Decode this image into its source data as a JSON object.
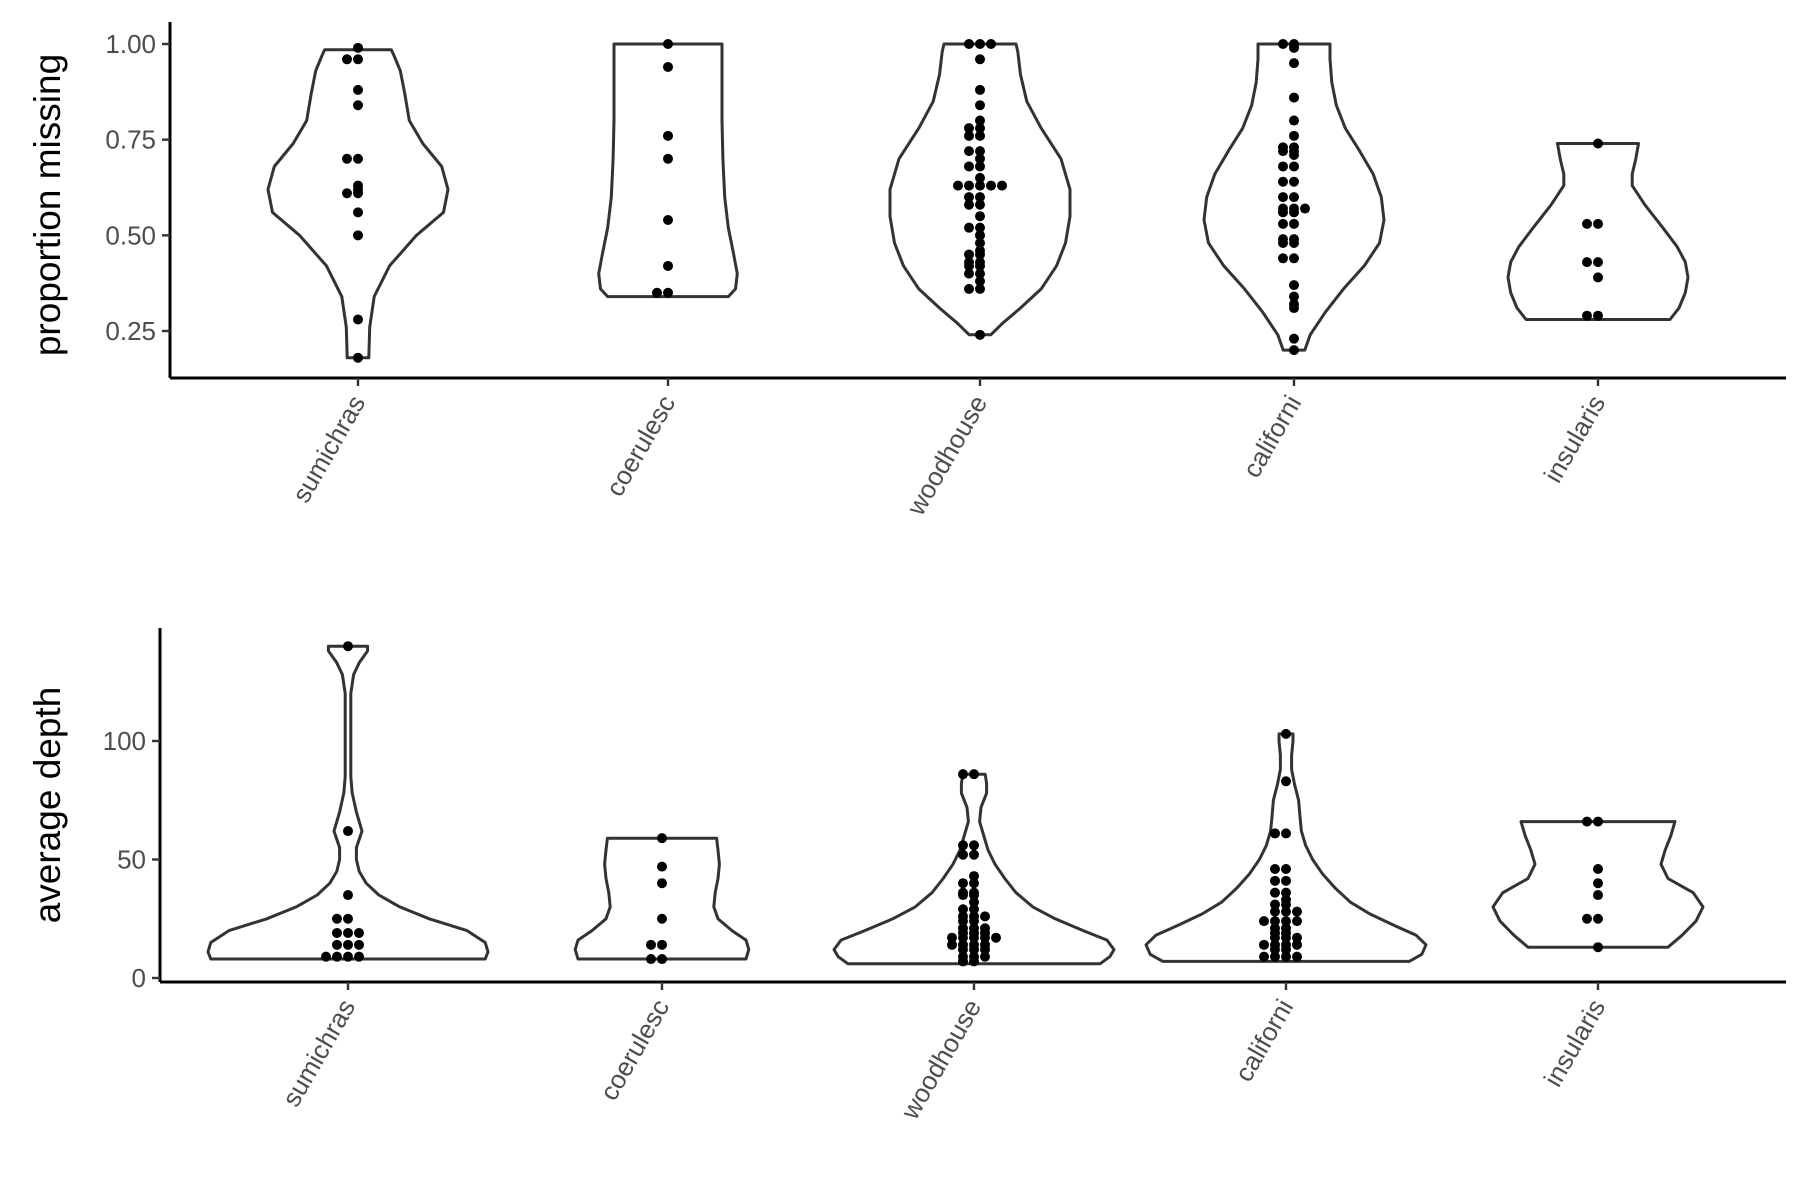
{
  "chart_data": [
    {
      "type": "violin",
      "ylabel": "proportion missing",
      "xlabel": "",
      "categories": [
        "sumichras",
        "coerulesc",
        "woodhouse",
        "californi",
        "insularis"
      ],
      "yticks": [
        0.25,
        0.5,
        0.75,
        1.0
      ],
      "ytick_labels": [
        "0.25",
        "0.50",
        "0.75",
        "1.00"
      ],
      "ylim": [
        0.13,
        1.05
      ],
      "series": [
        {
          "category": "sumichras",
          "values": [
            0.99,
            0.96,
            0.96,
            0.88,
            0.84,
            0.7,
            0.7,
            0.63,
            0.62,
            0.61,
            0.61,
            0.56,
            0.5,
            0.28,
            0.18
          ],
          "violin": {
            "y": [
              0.18,
              0.26,
              0.34,
              0.42,
              0.5,
              0.56,
              0.62,
              0.68,
              0.74,
              0.8,
              0.87,
              0.93,
              0.97,
              0.985
            ],
            "w": [
              0.12,
              0.13,
              0.18,
              0.35,
              0.65,
              0.95,
              1.0,
              0.93,
              0.72,
              0.57,
              0.52,
              0.47,
              0.4,
              0.37
            ]
          }
        },
        {
          "category": "coerulesc",
          "values": [
            1.0,
            0.94,
            0.76,
            0.7,
            0.54,
            0.42,
            0.35,
            0.35
          ],
          "violin": {
            "y": [
              0.34,
              0.36,
              0.4,
              0.45,
              0.52,
              0.6,
              0.7,
              0.8,
              0.9,
              0.97,
              1.0
            ],
            "w": [
              0.67,
              0.75,
              0.77,
              0.73,
              0.67,
              0.63,
              0.61,
              0.6,
              0.6,
              0.6,
              0.6
            ]
          }
        },
        {
          "category": "woodhouse",
          "values": [
            1.0,
            1.0,
            1.0,
            0.96,
            0.88,
            0.84,
            0.8,
            0.78,
            0.78,
            0.76,
            0.76,
            0.72,
            0.72,
            0.7,
            0.68,
            0.68,
            0.65,
            0.63,
            0.63,
            0.63,
            0.63,
            0.63,
            0.6,
            0.6,
            0.58,
            0.58,
            0.55,
            0.52,
            0.52,
            0.5,
            0.48,
            0.46,
            0.45,
            0.45,
            0.43,
            0.43,
            0.42,
            0.42,
            0.4,
            0.4,
            0.38,
            0.36,
            0.36,
            0.24
          ],
          "violin": {
            "y": [
              0.24,
              0.27,
              0.31,
              0.36,
              0.42,
              0.48,
              0.55,
              0.62,
              0.7,
              0.78,
              0.85,
              0.92,
              0.98,
              1.0
            ],
            "w": [
              0.12,
              0.25,
              0.45,
              0.68,
              0.85,
              0.95,
              1.0,
              1.0,
              0.9,
              0.68,
              0.52,
              0.45,
              0.42,
              0.4
            ]
          }
        },
        {
          "category": "californi",
          "values": [
            1.0,
            1.0,
            0.99,
            0.95,
            0.86,
            0.8,
            0.76,
            0.73,
            0.73,
            0.72,
            0.72,
            0.71,
            0.68,
            0.68,
            0.64,
            0.64,
            0.6,
            0.6,
            0.57,
            0.57,
            0.57,
            0.56,
            0.56,
            0.53,
            0.53,
            0.49,
            0.49,
            0.48,
            0.48,
            0.44,
            0.44,
            0.37,
            0.34,
            0.32,
            0.31,
            0.23,
            0.2
          ],
          "violin": {
            "y": [
              0.2,
              0.24,
              0.3,
              0.36,
              0.42,
              0.48,
              0.54,
              0.6,
              0.66,
              0.72,
              0.78,
              0.84,
              0.9,
              0.96,
              1.0
            ],
            "w": [
              0.12,
              0.18,
              0.35,
              0.55,
              0.78,
              0.95,
              1.0,
              0.97,
              0.88,
              0.73,
              0.57,
              0.47,
              0.42,
              0.4,
              0.4
            ]
          }
        },
        {
          "category": "insularis",
          "values": [
            0.74,
            0.53,
            0.53,
            0.43,
            0.43,
            0.39,
            0.29,
            0.29
          ],
          "violin": {
            "y": [
              0.28,
              0.31,
              0.35,
              0.39,
              0.43,
              0.47,
              0.52,
              0.58,
              0.63,
              0.66,
              0.7,
              0.74
            ],
            "w": [
              0.8,
              0.9,
              0.97,
              1.0,
              0.97,
              0.88,
              0.72,
              0.52,
              0.38,
              0.38,
              0.42,
              0.45
            ]
          }
        }
      ]
    },
    {
      "type": "violin",
      "ylabel": "average depth",
      "xlabel": "",
      "categories": [
        "sumichras",
        "coerulesc",
        "woodhouse",
        "californi",
        "insularis"
      ],
      "yticks": [
        0,
        50,
        100
      ],
      "ytick_labels": [
        "0",
        "50",
        "100"
      ],
      "ylim": [
        -1,
        150
      ],
      "series": [
        {
          "category": "sumichras",
          "values": [
            140,
            62,
            35,
            25,
            25,
            19,
            19,
            19,
            14,
            14,
            14,
            9,
            9,
            9,
            9
          ],
          "violin": {
            "y": [
              8,
              11,
              15,
              20,
              25,
              30,
              35,
              40,
              45,
              50,
              55,
              62,
              70,
              78,
              85,
              100,
              120,
              128,
              133,
              138,
              140
            ],
            "w": [
              0.98,
              1.0,
              0.98,
              0.85,
              0.58,
              0.37,
              0.22,
              0.13,
              0.08,
              0.06,
              0.06,
              0.1,
              0.06,
              0.03,
              0.02,
              0.02,
              0.02,
              0.04,
              0.08,
              0.14,
              0.14
            ]
          }
        },
        {
          "category": "coerulesc",
          "values": [
            59,
            47,
            40,
            25,
            14,
            14,
            8,
            8
          ],
          "violin": {
            "y": [
              8,
              12,
              16,
              20,
              25,
              30,
              36,
              42,
              48,
              54,
              59
            ],
            "w": [
              0.6,
              0.62,
              0.6,
              0.5,
              0.4,
              0.37,
              0.38,
              0.4,
              0.41,
              0.4,
              0.39
            ]
          }
        },
        {
          "category": "woodhouse",
          "values": [
            86,
            86,
            56,
            56,
            52,
            52,
            43,
            40,
            40,
            36,
            36,
            35,
            35,
            32,
            29,
            29,
            26,
            26,
            26,
            24,
            24,
            21,
            21,
            21,
            19,
            19,
            19,
            17,
            17,
            17,
            17,
            17,
            14,
            14,
            14,
            14,
            12,
            12,
            12,
            9,
            9,
            9,
            7,
            7
          ],
          "violin": {
            "y": [
              6,
              9,
              12,
              16,
              20,
              25,
              30,
              36,
              42,
              48,
              54,
              60,
              66,
              72,
              78,
              82,
              86
            ],
            "w": [
              0.9,
              0.97,
              1.0,
              0.95,
              0.78,
              0.58,
              0.42,
              0.3,
              0.22,
              0.15,
              0.1,
              0.07,
              0.04,
              0.05,
              0.09,
              0.09,
              0.08
            ]
          }
        },
        {
          "category": "californi",
          "values": [
            103,
            83,
            61,
            61,
            46,
            46,
            41,
            41,
            36,
            36,
            33,
            31,
            31,
            28,
            28,
            28,
            24,
            24,
            24,
            24,
            21,
            21,
            19,
            19,
            17,
            17,
            17,
            14,
            14,
            14,
            14,
            12,
            12,
            9,
            9,
            9,
            9
          ],
          "violin": {
            "y": [
              7,
              10,
              14,
              18,
              22,
              27,
              32,
              38,
              44,
              50,
              56,
              62,
              68,
              75,
              82,
              88,
              94,
              100,
              103
            ],
            "w": [
              0.88,
              0.97,
              1.0,
              0.93,
              0.78,
              0.6,
              0.46,
              0.35,
              0.26,
              0.19,
              0.14,
              0.11,
              0.1,
              0.09,
              0.06,
              0.04,
              0.04,
              0.05,
              0.05
            ]
          }
        },
        {
          "category": "insularis",
          "values": [
            66,
            66,
            46,
            40,
            35,
            25,
            25,
            13
          ],
          "violin": {
            "y": [
              13,
              18,
              24,
              30,
              36,
              42,
              48,
              54,
              60,
              66
            ],
            "w": [
              0.5,
              0.6,
              0.7,
              0.75,
              0.68,
              0.5,
              0.45,
              0.48,
              0.52,
              0.55
            ]
          }
        }
      ]
    }
  ]
}
